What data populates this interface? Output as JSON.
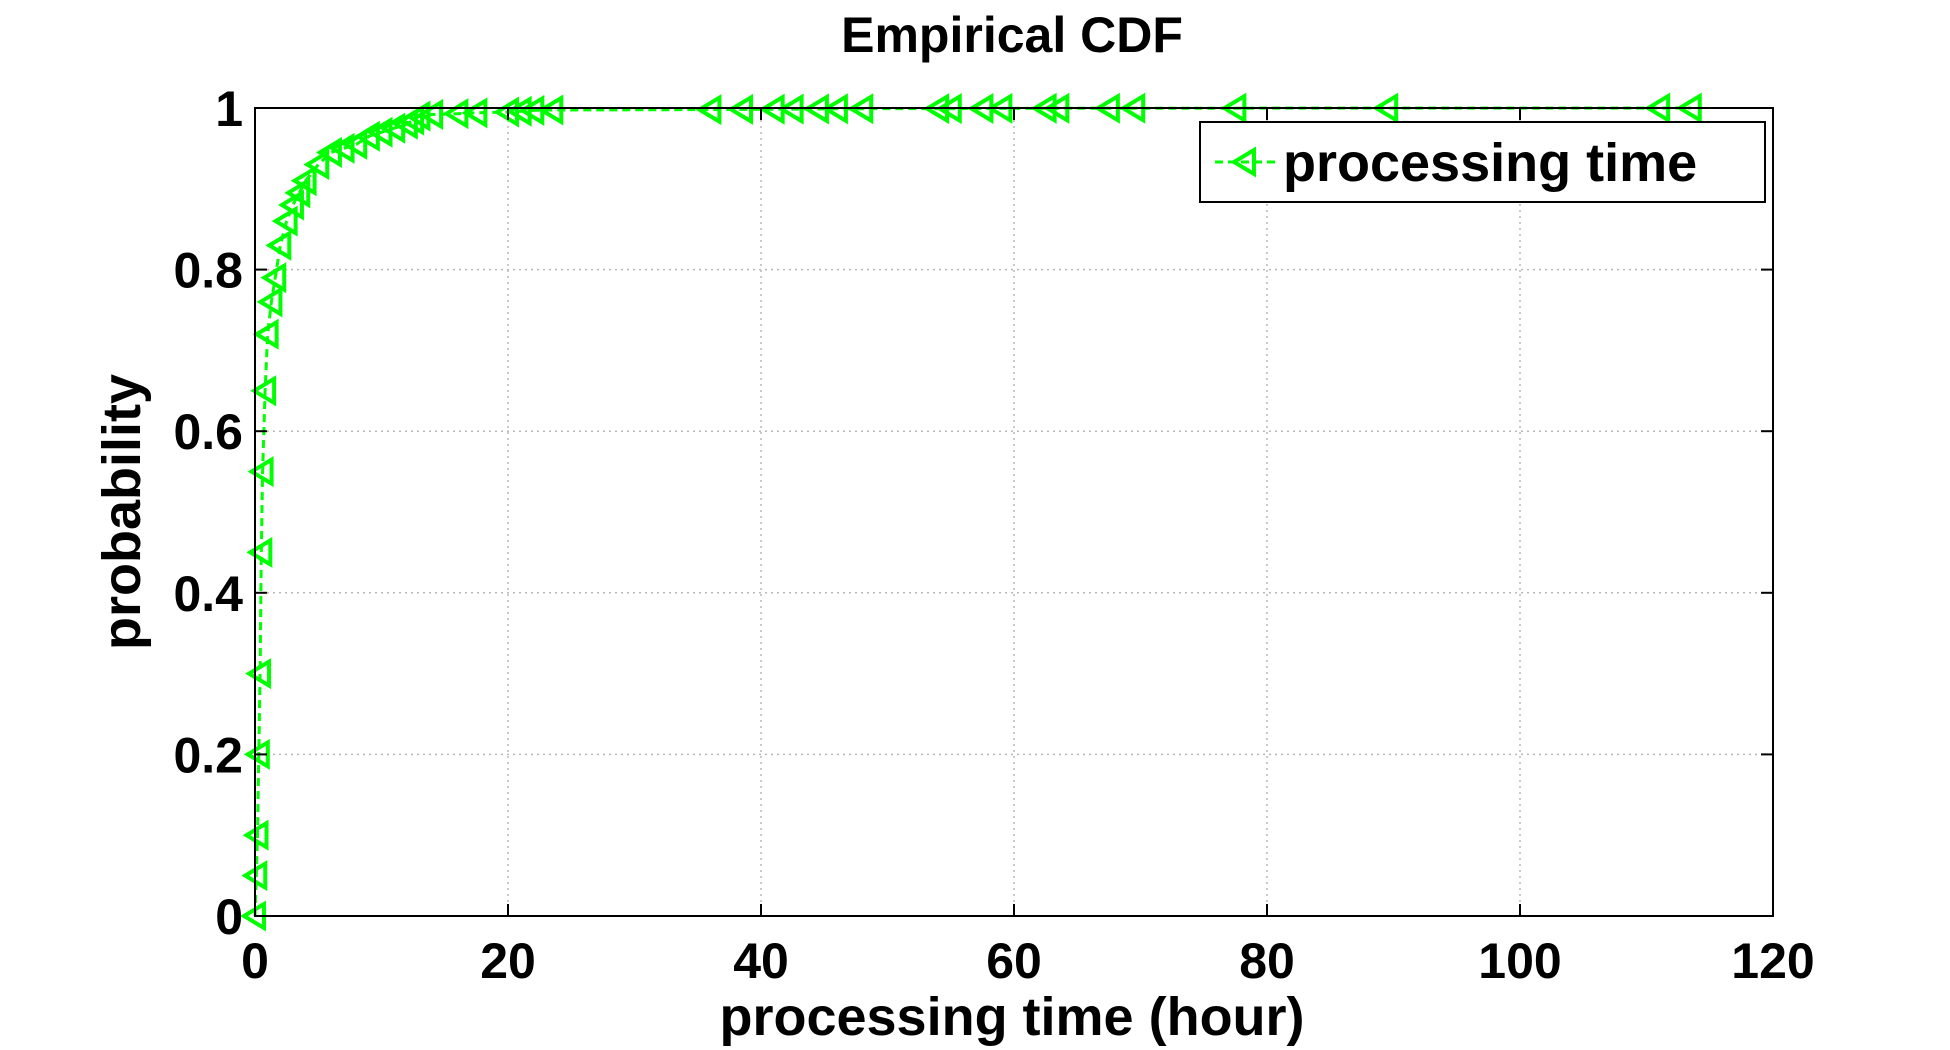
{
  "chart_data": {
    "type": "line",
    "title": "Empirical CDF",
    "xlabel": "processing time (hour)",
    "ylabel": "probability",
    "xlim": [
      0,
      120
    ],
    "ylim": [
      0,
      1
    ],
    "xticks": [
      0,
      20,
      40,
      60,
      80,
      100,
      120
    ],
    "xtick_labels": [
      "0",
      "20",
      "40",
      "60",
      "80",
      "100",
      "120"
    ],
    "yticks": [
      0,
      0.2,
      0.4,
      0.6,
      0.8,
      1
    ],
    "ytick_labels": [
      "0",
      "0.2",
      "0.4",
      "0.6",
      "0.8",
      "1"
    ],
    "grid": true,
    "legend": {
      "position": "top-right",
      "entries": [
        "processing time"
      ]
    },
    "series": [
      {
        "name": "processing time",
        "color": "#00ff00",
        "line_style": "dashed",
        "marker": "triangle-left",
        "x": [
          0,
          0.1,
          0.2,
          0.3,
          0.4,
          0.5,
          0.6,
          0.8,
          1.0,
          1.3,
          1.6,
          2.0,
          2.5,
          3.0,
          3.5,
          4.0,
          5.0,
          6.0,
          7.0,
          8.0,
          9.0,
          10.0,
          11.0,
          12.0,
          12.5,
          13.0,
          14.0,
          16.0,
          17.5,
          20.0,
          21.0,
          22.0,
          23.5,
          36.0,
          38.5,
          41.0,
          42.5,
          44.5,
          46.0,
          48.0,
          54.0,
          55.0,
          57.5,
          59.0,
          62.5,
          63.5,
          67.5,
          69.5,
          77.5,
          89.5,
          111.0,
          113.5
        ],
        "y": [
          0,
          0.05,
          0.1,
          0.2,
          0.3,
          0.45,
          0.55,
          0.65,
          0.72,
          0.76,
          0.79,
          0.83,
          0.86,
          0.88,
          0.895,
          0.91,
          0.93,
          0.945,
          0.95,
          0.955,
          0.965,
          0.97,
          0.975,
          0.98,
          0.985,
          0.99,
          0.992,
          0.993,
          0.994,
          0.995,
          0.996,
          0.997,
          0.9975,
          0.998,
          0.9983,
          0.9985,
          0.9987,
          0.9988,
          0.999,
          0.9991,
          0.9992,
          0.9993,
          0.9994,
          0.9995,
          0.9996,
          0.99965,
          0.9997,
          0.99975,
          0.9998,
          0.99985,
          0.9999,
          1.0
        ]
      }
    ]
  }
}
